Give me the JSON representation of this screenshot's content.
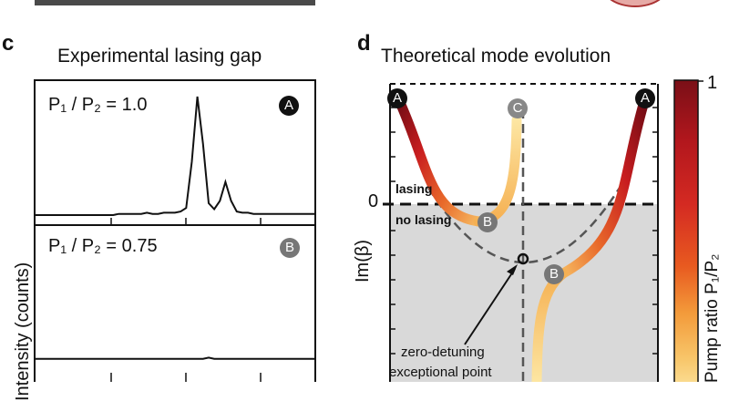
{
  "panel_c": {
    "letter": "c",
    "title": "Experimental lasing gap",
    "ylabel": "Intensity (counts)",
    "subplots": [
      {
        "ratio_label": "P₁ / P₂ = 1.0",
        "marker": "A",
        "marker_color": "#111111"
      },
      {
        "ratio_label": "P₁ / P₂ = 0.75",
        "marker": "B",
        "marker_color": "#7a7a7a"
      }
    ]
  },
  "panel_d": {
    "letter": "d",
    "title": "Theoretical mode evolution",
    "ylabel": "Im(β)",
    "zero_tick": "0",
    "lasing_label": "lasing",
    "no_lasing_label": "no lasing",
    "annotation_line1": "zero-detuning",
    "annotation_line2": "exceptional point",
    "markers": {
      "A_left": "A",
      "A_right": "A",
      "B_left": "B",
      "B_right": "B",
      "C": "C"
    }
  },
  "colorbar": {
    "label": "Pump ratio P₁/P₂",
    "tick_top": "1",
    "colors": [
      "#7a0f17",
      "#b3171d",
      "#d42a22",
      "#e85a20",
      "#f39a3a",
      "#f8c66a",
      "#fbe19a"
    ]
  },
  "chart_data": [
    {
      "type": "line",
      "title": "Experimental lasing gap",
      "ylabel": "Intensity (counts)",
      "series": [
        {
          "x": [
            0,
            0.28,
            0.3,
            0.32,
            0.34,
            0.36,
            0.38,
            0.4,
            0.42,
            0.44,
            0.46,
            0.48,
            0.5,
            0.52,
            0.54,
            0.56,
            0.58,
            0.6,
            0.62,
            0.64,
            0.66,
            0.68,
            0.7,
            0.72,
            0.74,
            0.76,
            0.78,
            0.8,
            1.0
          ],
          "y": [
            0,
            0,
            0.01,
            0.01,
            0.01,
            0.01,
            0.01,
            0.02,
            0.01,
            0.01,
            0.02,
            0.02,
            0.02,
            0.03,
            0.06,
            0.45,
            1.0,
            0.6,
            0.1,
            0.05,
            0.12,
            0.28,
            0.12,
            0.03,
            0.02,
            0.02,
            0.01,
            0.01,
            0.01
          ]
        },
        {
          "x": [
            0,
            0.2,
            0.4,
            0.6,
            0.62,
            0.64,
            0.8,
            1.0
          ],
          "y": [
            0.01,
            0.01,
            0.01,
            0.01,
            0.02,
            0.01,
            0.01,
            0.01
          ]
        }
      ]
    },
    {
      "type": "line",
      "title": "Theoretical mode evolution",
      "ylabel": "Im(β)"
    }
  ]
}
